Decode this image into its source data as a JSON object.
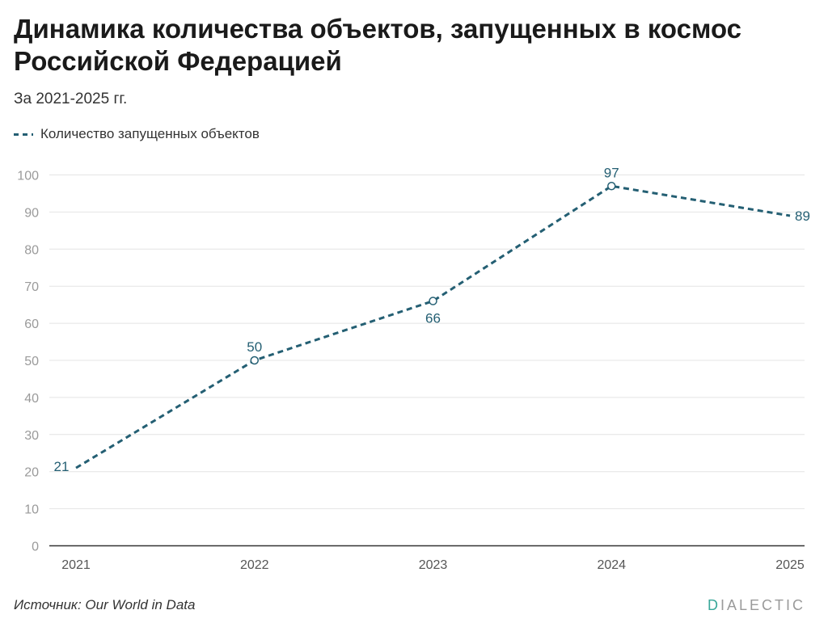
{
  "chart_data": {
    "type": "line",
    "title": "Динамика количества объектов, запущенных в космос Российской Федерацией",
    "subtitle": "За 2021-2025 гг.",
    "categories": [
      "2021",
      "2022",
      "2023",
      "2024",
      "2025"
    ],
    "series": [
      {
        "name": "Количество запущенных объектов",
        "values": [
          21,
          50,
          66,
          97,
          89
        ],
        "color": "#245f73",
        "style": "dashed"
      }
    ],
    "y_ticks": [
      "0",
      "10",
      "20",
      "30",
      "40",
      "50",
      "60",
      "70",
      "80",
      "90",
      "100"
    ],
    "ylim": [
      0,
      100
    ],
    "xlabel": "",
    "ylabel": "",
    "grid": true,
    "legend_position": "top-left",
    "value_labels": [
      "21",
      "50",
      "66",
      "97",
      "89"
    ]
  },
  "footer": {
    "source": "Источник: Our World in Data",
    "brand_first": "D",
    "brand_rest": "IALECTIC"
  },
  "colors": {
    "line": "#245f73",
    "grid": "#e4e4e4",
    "axis_text": "#9a9a9a",
    "brand_accent": "#3aa89a"
  }
}
